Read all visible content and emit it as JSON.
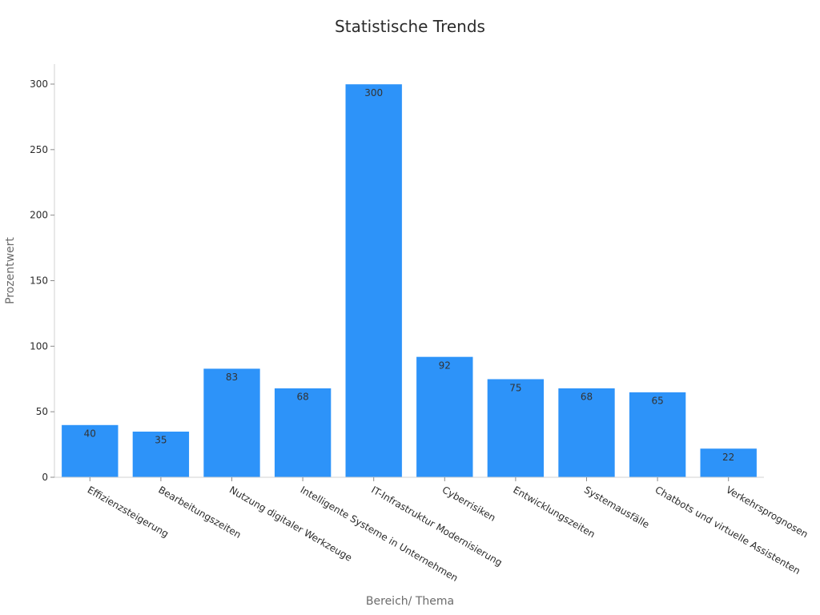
{
  "chart_data": {
    "type": "bar",
    "title": "Statistische Trends",
    "xlabel": "Bereich/ Thema",
    "ylabel": "Prozentwert",
    "categories": [
      "Effizienzsteigerung",
      "Bearbeitungszeiten",
      "Nutzung digitaler Werkzeuge",
      "Intelligente Systeme in Unternehmen",
      "IT-Infrastruktur Modernisierung",
      "Cyberrisiken",
      "Entwicklungszeiten",
      "Systemausfälle",
      "Chatbots und virtuelle Assistenten",
      "Verkehrsprognosen"
    ],
    "values": [
      40,
      35,
      83,
      68,
      300,
      92,
      75,
      68,
      65,
      22
    ],
    "ylim": [
      0,
      315
    ],
    "yticks": [
      0,
      50,
      100,
      150,
      200,
      250,
      300
    ],
    "grid": false,
    "legend": "none",
    "bar_color": "#2d93f9"
  }
}
